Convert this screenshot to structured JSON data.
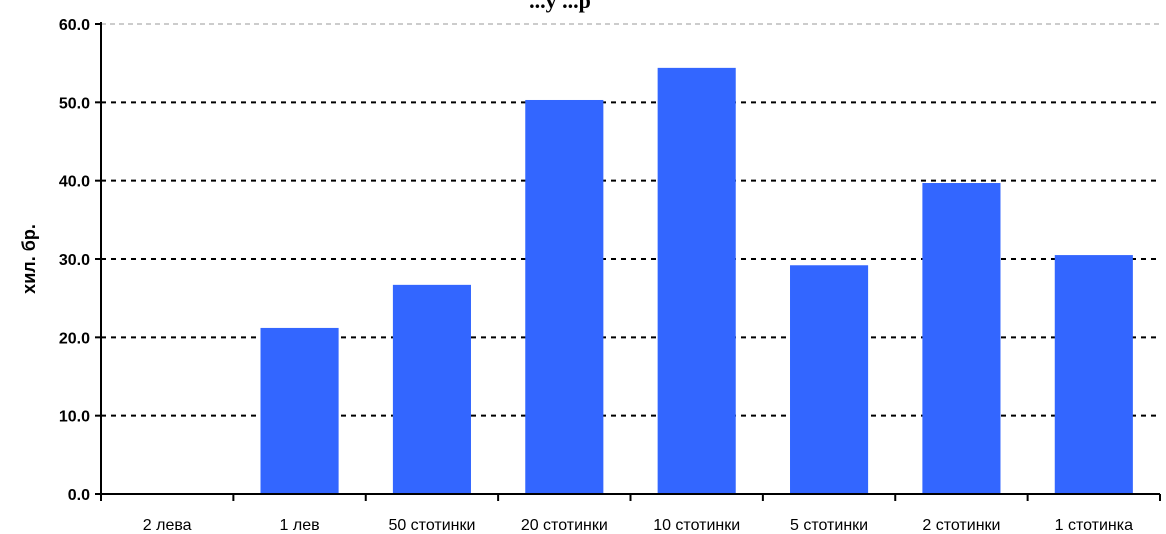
{
  "chart_data": {
    "type": "bar",
    "title": "...у ...р",
    "xlabel": "",
    "ylabel": "хил. бр.",
    "ylim": [
      0,
      60
    ],
    "yticks": [
      "0.0",
      "10.0",
      "20.0",
      "30.0",
      "40.0",
      "50.0",
      "60.0"
    ],
    "grid": true,
    "bar_color": "#3366FF",
    "categories": [
      "2 лева",
      "1 лев",
      "50 стотинки",
      "20 стотинки",
      "10 стотинки",
      "5 стотинки",
      "2 стотинки",
      "1 стотинка"
    ],
    "values": [
      0,
      21.2,
      26.7,
      50.3,
      54.4,
      29.2,
      39.7,
      30.5
    ]
  }
}
